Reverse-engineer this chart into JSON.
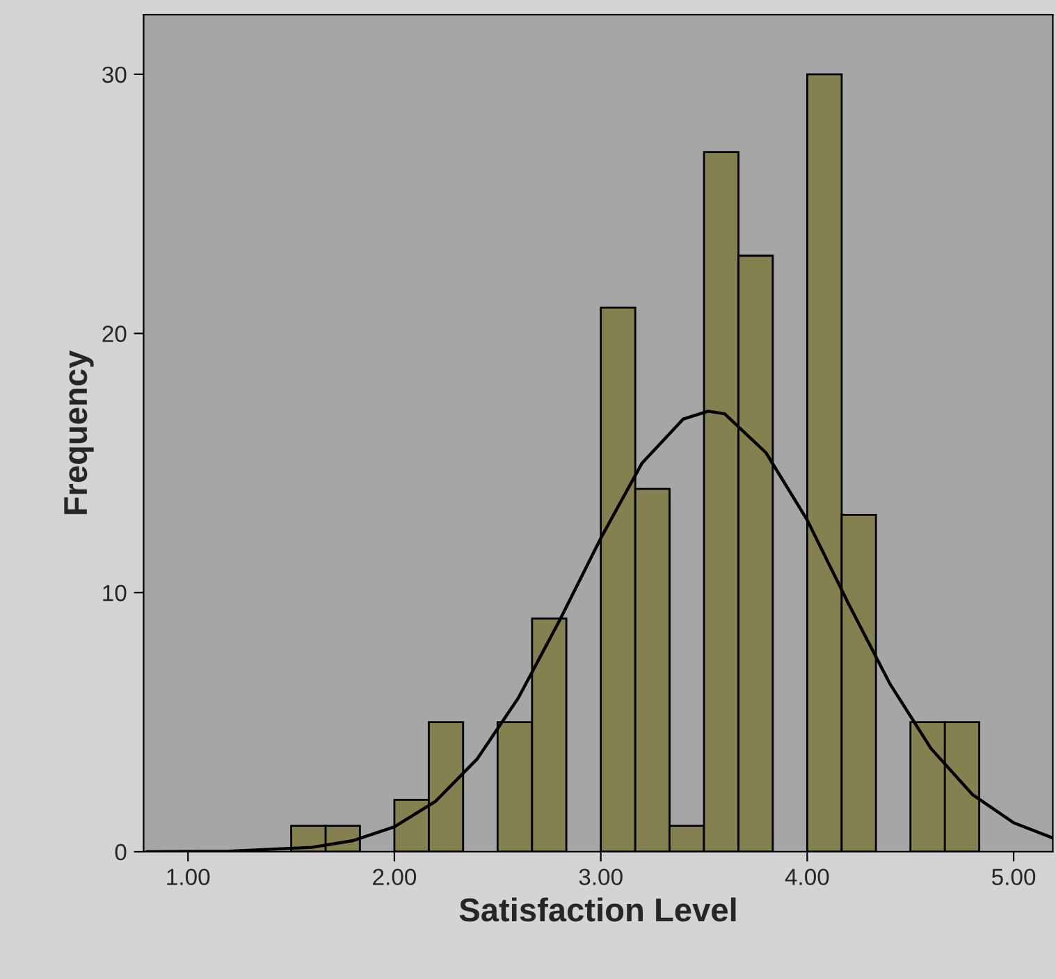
{
  "chart_data": {
    "type": "histogram",
    "xlabel": "Satisfaction Level",
    "ylabel": "Frequency",
    "bins": [
      1.5,
      1.667,
      1.833,
      2.0,
      2.167,
      2.333,
      2.5,
      2.667,
      2.833,
      3.0,
      3.167,
      3.333,
      3.5,
      3.667,
      3.833,
      4.0,
      4.167,
      4.333,
      4.5,
      4.667,
      4.833
    ],
    "values": [
      1,
      1,
      0,
      2,
      5,
      0,
      5,
      9,
      0,
      21,
      14,
      1,
      27,
      23,
      0,
      30,
      13,
      0,
      5,
      5
    ],
    "color": "#858050",
    "series": [
      {
        "type": "line",
        "color": "#000000",
        "x": [
          0.8,
          1.2,
          1.6,
          1.8,
          2.0,
          2.2,
          2.4,
          2.6,
          2.8,
          3.0,
          3.2,
          3.4,
          3.52,
          3.6,
          3.8,
          4.0,
          4.2,
          4.4,
          4.6,
          4.8,
          5.0,
          5.19
        ],
        "values": [
          0.0,
          0.02,
          0.17,
          0.43,
          0.96,
          1.95,
          3.57,
          5.93,
          8.92,
          12.1,
          15.0,
          16.7,
          17.0,
          16.9,
          15.4,
          12.8,
          9.57,
          6.49,
          3.98,
          2.21,
          1.12,
          0.53
        ]
      }
    ],
    "xlim": [
      0.785,
      5.19
    ],
    "ylim": [
      0,
      32.3
    ],
    "xticks": [
      {
        "value": 1,
        "label": "1.00"
      },
      {
        "value": 2,
        "label": "2.00"
      },
      {
        "value": 3,
        "label": "3.00"
      },
      {
        "value": 4,
        "label": "4.00"
      },
      {
        "value": 5,
        "label": "5.00"
      }
    ],
    "yticks": [
      0,
      10,
      20,
      30
    ],
    "grid": false,
    "legend": false
  }
}
